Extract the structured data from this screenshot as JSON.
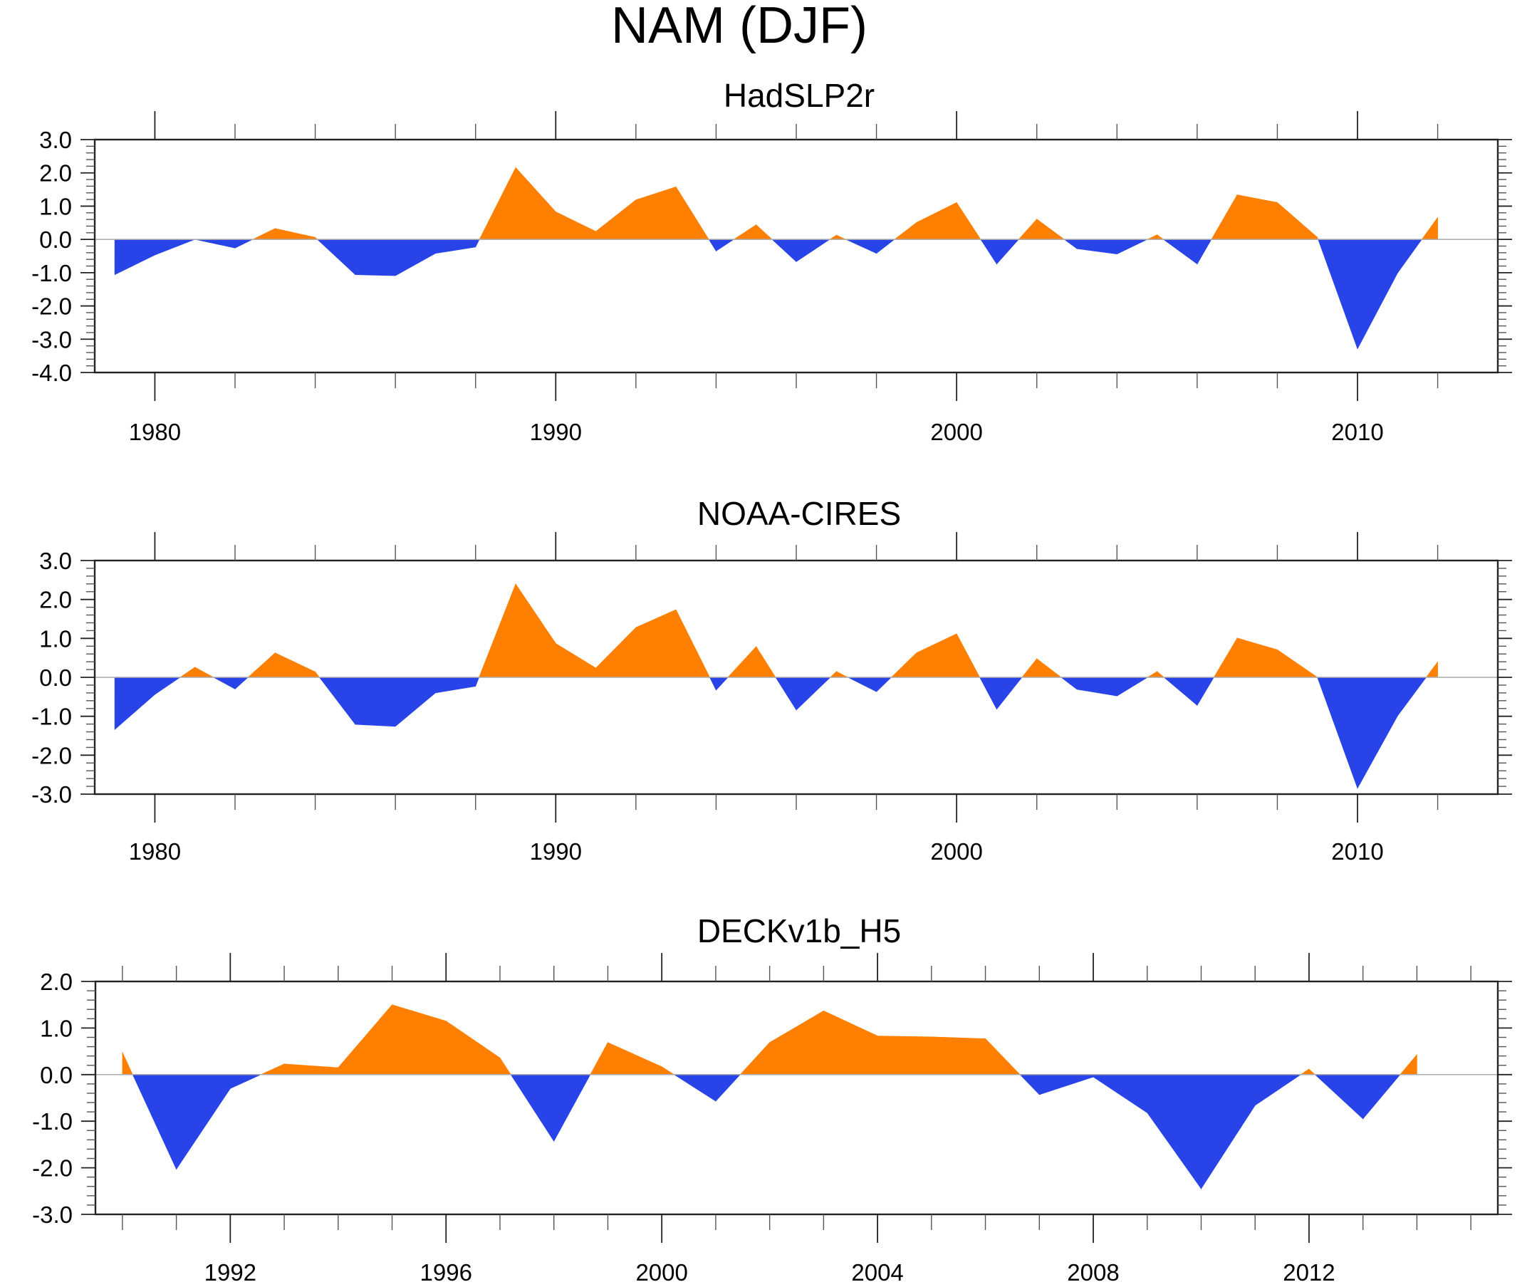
{
  "chart_data": {
    "title": "NAM (DJF)",
    "type": "area",
    "colors": {
      "positive": "#FF8000",
      "negative": "#2844E8",
      "zero_line": "#AAAAAA"
    },
    "panels": [
      {
        "title": "HadSLP2r",
        "type": "area",
        "xlabel": "",
        "ylabel": "",
        "xlim": [
          1978.5,
          2013.5
        ],
        "ylim": [
          -4.0,
          3.0
        ],
        "yticks": [
          3.0,
          2.0,
          1.0,
          0.0,
          -1.0,
          -2.0,
          -3.0,
          -4.0
        ],
        "ytick_labels": [
          "3.0",
          "2.0",
          "1.0",
          "0.0",
          "-1.0",
          "-2.0",
          "-3.0",
          "-4.0"
        ],
        "xticks_major": [
          1980,
          1990,
          2000,
          2010
        ],
        "xtick_labels": [
          "1980",
          "1990",
          "2000",
          "2010"
        ],
        "xtick_minor_step": 2,
        "ytick_minor_step": 0.2,
        "fill": "positive orange / negative blue about zero",
        "x": [
          1979,
          1980,
          1981,
          1982,
          1983,
          1984,
          1985,
          1986,
          1987,
          1988,
          1989,
          1990,
          1991,
          1992,
          1993,
          1994,
          1995,
          1996,
          1997,
          1998,
          1999,
          2000,
          2001,
          2002,
          2003,
          2004,
          2005,
          2006,
          2007,
          2008,
          2009,
          2010,
          2011,
          2012
        ],
        "values": [
          -1.06,
          -0.47,
          0.0,
          -0.26,
          0.33,
          0.06,
          -1.06,
          -1.09,
          -0.42,
          -0.23,
          2.16,
          0.83,
          0.24,
          1.19,
          1.58,
          -0.35,
          0.44,
          -0.67,
          0.13,
          -0.42,
          0.51,
          1.11,
          -0.74,
          0.61,
          -0.28,
          -0.44,
          0.14,
          -0.74,
          1.34,
          1.11,
          0.06,
          -3.29,
          -1.01,
          0.66
        ]
      },
      {
        "title": "NOAA-CIRES",
        "type": "area",
        "xlabel": "",
        "ylabel": "",
        "xlim": [
          1978.5,
          2013.5
        ],
        "ylim": [
          -3.0,
          3.0
        ],
        "yticks": [
          3.0,
          2.0,
          1.0,
          0.0,
          -1.0,
          -2.0,
          -3.0
        ],
        "ytick_labels": [
          "3.0",
          "2.0",
          "1.0",
          "0.0",
          "-1.0",
          "-2.0",
          "-3.0"
        ],
        "xticks_major": [
          1980,
          1990,
          2000,
          2010
        ],
        "xtick_labels": [
          "1980",
          "1990",
          "2000",
          "2010"
        ],
        "xtick_minor_step": 2,
        "ytick_minor_step": 0.2,
        "fill": "positive orange / negative blue about zero",
        "x": [
          1979,
          1980,
          1981,
          1982,
          1983,
          1984,
          1985,
          1986,
          1987,
          1988,
          1989,
          1990,
          1991,
          1992,
          1993,
          1994,
          1995,
          1996,
          1997,
          1998,
          1999,
          2000,
          2001,
          2002,
          2003,
          2004,
          2005,
          2006,
          2007,
          2008,
          2009,
          2010,
          2011,
          2012
        ],
        "values": [
          -1.34,
          -0.44,
          0.26,
          -0.3,
          0.63,
          0.14,
          -1.21,
          -1.26,
          -0.4,
          -0.23,
          2.4,
          0.87,
          0.24,
          1.28,
          1.74,
          -0.33,
          0.79,
          -0.84,
          0.15,
          -0.37,
          0.63,
          1.12,
          -0.82,
          0.48,
          -0.31,
          -0.48,
          0.15,
          -0.72,
          1.01,
          0.71,
          0.0,
          -2.85,
          -0.99,
          0.4
        ]
      },
      {
        "title": "DECKv1b_H5",
        "type": "area",
        "xlabel": "",
        "ylabel": "",
        "xlim": [
          1989.5,
          2015.5
        ],
        "ylim": [
          -3.0,
          2.0
        ],
        "yticks": [
          2.0,
          1.0,
          0.0,
          -1.0,
          -2.0,
          -3.0
        ],
        "ytick_labels": [
          "2.0",
          "1.0",
          "0.0",
          "-1.0",
          "-2.0",
          "-3.0"
        ],
        "xticks_major": [
          1992,
          1996,
          2000,
          2004,
          2008,
          2012
        ],
        "xtick_labels": [
          "1992",
          "1996",
          "2000",
          "2004",
          "2008",
          "2012"
        ],
        "xtick_minor_step": 1,
        "ytick_minor_step": 0.2,
        "fill": "positive orange / negative blue about zero",
        "x": [
          1990,
          1991,
          1992,
          1993,
          1994,
          1995,
          1996,
          1997,
          1998,
          1999,
          2000,
          2001,
          2002,
          2003,
          2004,
          2005,
          2006,
          2007,
          2008,
          2009,
          2010,
          2011,
          2012,
          2013,
          2014
        ],
        "values": [
          0.48,
          -2.03,
          -0.3,
          0.23,
          0.15,
          1.5,
          1.15,
          0.36,
          -1.43,
          0.69,
          0.17,
          -0.57,
          0.69,
          1.37,
          0.83,
          0.81,
          0.77,
          -0.43,
          -0.05,
          -0.82,
          -2.45,
          -0.66,
          0.12,
          -0.95,
          0.43
        ]
      }
    ]
  }
}
